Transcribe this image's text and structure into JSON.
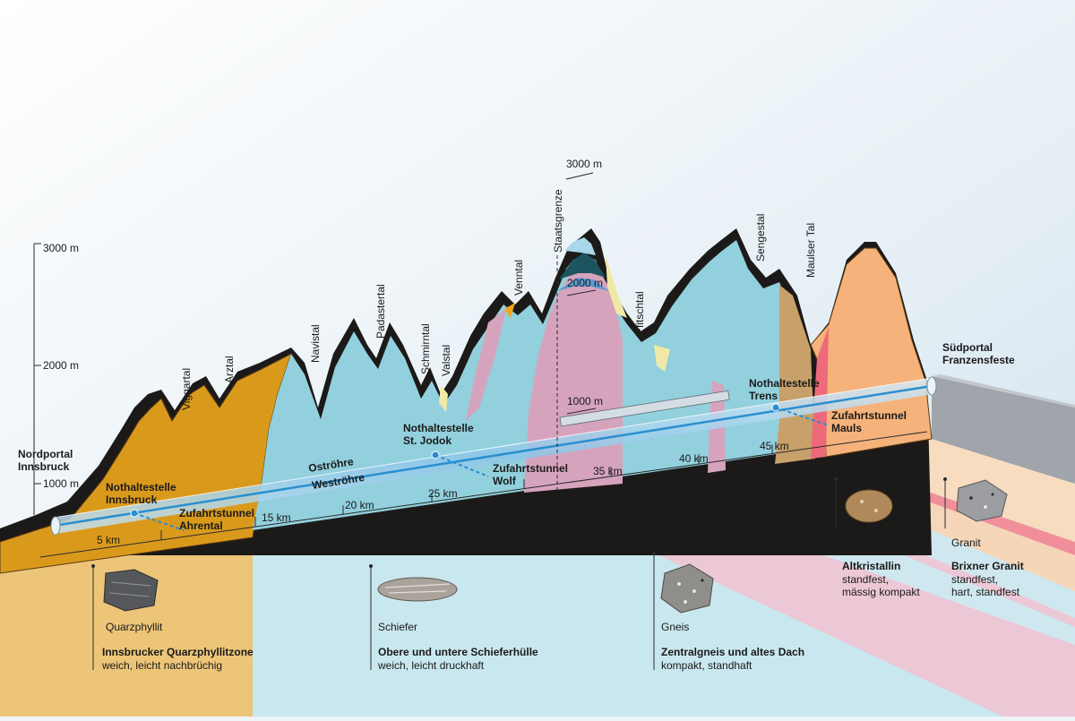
{
  "altitude_axis": [
    "3000 m",
    "2000 m",
    "1000 m"
  ],
  "inner_elevations": [
    "3000 m",
    "2000 m",
    "1000 m"
  ],
  "valleys": [
    "Viggartal",
    "Arztal",
    "Navistal",
    "Padastertal",
    "Schmirntal",
    "Valstal",
    "Venntal",
    "Staatsgrenze",
    "Pfitschtal",
    "Sengestal",
    "Maulser Tal"
  ],
  "portals": {
    "north": [
      "Nordportal",
      "Innsbruck"
    ],
    "south": [
      "Südportal",
      "Franzensfeste"
    ]
  },
  "tubes": {
    "east": "Oströhre",
    "west": "Weströhre"
  },
  "stations": [
    {
      "line1": "Nothaltestelle",
      "line2": "Innsbruck"
    },
    {
      "line1": "Nothaltestelle",
      "line2": "St. Jodok"
    },
    {
      "line1": "Nothaltestelle",
      "line2": "Trens"
    }
  ],
  "access_tunnels": [
    {
      "line1": "Zufahrtstunnel",
      "line2": "Ahrental"
    },
    {
      "line1": "Zufahrtstunnel",
      "line2": "Wolf"
    },
    {
      "line1": "Zufahrtstunnel",
      "line2": "Mauls"
    }
  ],
  "km_marks": [
    "5 km",
    "15 km",
    "20 km",
    "25 km",
    "35 km",
    "40 km",
    "45 km"
  ],
  "zones": [
    {
      "rock": "Quarzphyllit",
      "name": "Innsbrucker Quarzphyllitzone",
      "desc": "weich, leicht nachbrüchig",
      "color": "#e2a93a"
    },
    {
      "rock": "Schiefer",
      "name": "Obere und untere Schieferhülle",
      "desc": "weich, leicht druckhaft",
      "color": "#8dcfdc"
    },
    {
      "rock": "Gneis",
      "name": "Zentralgneis und altes Dach",
      "desc": "kompakt, standhaft",
      "color": "#d9a6bf"
    },
    {
      "rock": "Altkristallin",
      "name": "Altkristallin",
      "desc1": "standfest,",
      "desc2": "mässig kompakt",
      "color": "#f1b07a"
    },
    {
      "rock": "Granit",
      "name": "Brixner Granit",
      "desc1": "standfest,",
      "desc2": "hart, standfest",
      "color": "#ee6f7d"
    }
  ]
}
